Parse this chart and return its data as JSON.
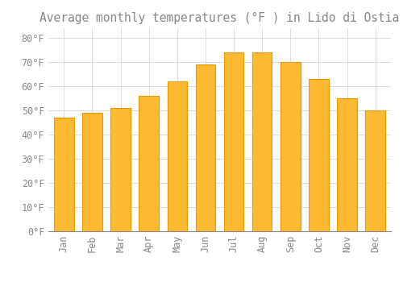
{
  "title": "Average monthly temperatures (°F ) in Lido di Ostia",
  "months": [
    "Jan",
    "Feb",
    "Mar",
    "Apr",
    "May",
    "Jun",
    "Jul",
    "Aug",
    "Sep",
    "Oct",
    "Nov",
    "Dec"
  ],
  "values": [
    47,
    49,
    51,
    56,
    62,
    69,
    74,
    74,
    70,
    63,
    55,
    50
  ],
  "bar_color": "#FDB931",
  "bar_edge_color": "#E89A00",
  "background_color": "#FFFFFF",
  "grid_color": "#DDDDDD",
  "ylim": [
    0,
    84
  ],
  "yticks": [
    0,
    10,
    20,
    30,
    40,
    50,
    60,
    70,
    80
  ],
  "ytick_labels": [
    "0°F",
    "10°F",
    "20°F",
    "30°F",
    "40°F",
    "50°F",
    "60°F",
    "70°F",
    "80°F"
  ],
  "title_fontsize": 10.5,
  "tick_fontsize": 8.5,
  "font_color": "#888888"
}
